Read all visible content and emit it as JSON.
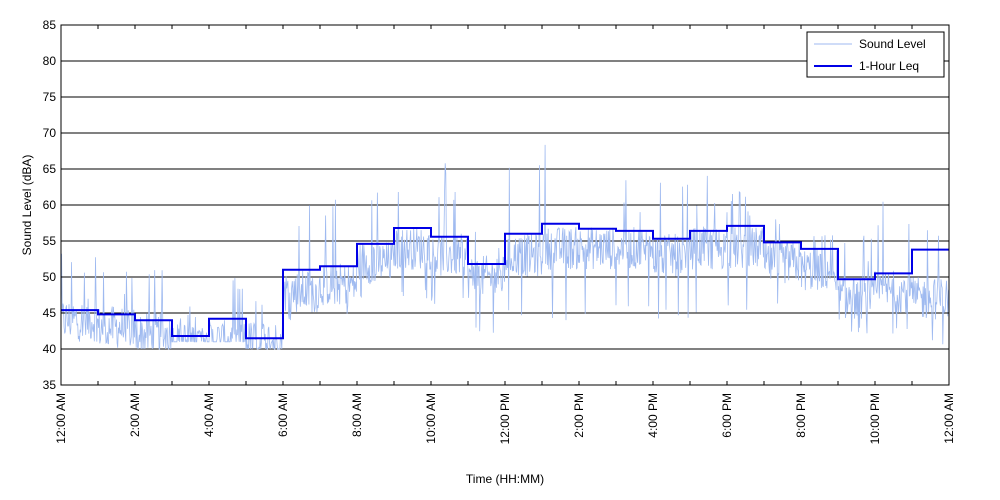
{
  "chart_data": {
    "type": "line",
    "title": "",
    "xlabel": "Time (HH:MM)",
    "ylabel": "Sound Level (dBA)",
    "xlim_hours": [
      0,
      24
    ],
    "ylim": [
      35,
      85
    ],
    "y_ticks": [
      35,
      40,
      45,
      50,
      55,
      60,
      65,
      70,
      75,
      80,
      85
    ],
    "x_tick_labels": [
      "12:00 AM",
      "2:00 AM",
      "4:00 AM",
      "6:00 AM",
      "8:00 AM",
      "10:00 AM",
      "12:00 PM",
      "2:00 PM",
      "4:00 PM",
      "6:00 PM",
      "8:00 PM",
      "10:00 PM",
      "12:00 AM"
    ],
    "grid": "horizontal",
    "legend_position": "top-right",
    "colors": {
      "sound_level": "#9fbaf0",
      "leq": "#0000e6"
    },
    "series": [
      {
        "name": "Sound Level",
        "style": "thin-line",
        "hourly_base": [
          44,
          43,
          42,
          41,
          41,
          41,
          48,
          49,
          52,
          54,
          53,
          50,
          53,
          54,
          54,
          54,
          53,
          54,
          54,
          52,
          51,
          47,
          48,
          47
        ],
        "hourly_max": [
          55,
          52,
          52,
          46,
          50,
          47,
          61,
          61,
          62,
          62,
          66,
          58,
          66,
          70,
          64,
          64,
          64,
          65,
          63,
          60,
          56,
          56,
          64,
          60
        ],
        "hourly_min": [
          41,
          40,
          40,
          41,
          41,
          40,
          44,
          44,
          46,
          47,
          46,
          42,
          44,
          43,
          44,
          45,
          44,
          45,
          45,
          45,
          44,
          42,
          42,
          40
        ]
      },
      {
        "name": "1-Hour Leq",
        "style": "step",
        "x_hours": [
          0,
          1,
          2,
          3,
          4,
          5,
          6,
          7,
          8,
          9,
          10,
          11,
          12,
          13,
          14,
          15,
          16,
          17,
          18,
          19,
          20,
          21,
          22,
          23
        ],
        "values": [
          45.4,
          44.8,
          44.0,
          41.8,
          44.2,
          41.5,
          51.0,
          51.5,
          54.6,
          56.8,
          55.6,
          51.8,
          56.0,
          57.4,
          56.7,
          56.4,
          55.3,
          56.4,
          57.1,
          54.8,
          53.9,
          49.7,
          50.5,
          53.8
        ]
      }
    ]
  }
}
